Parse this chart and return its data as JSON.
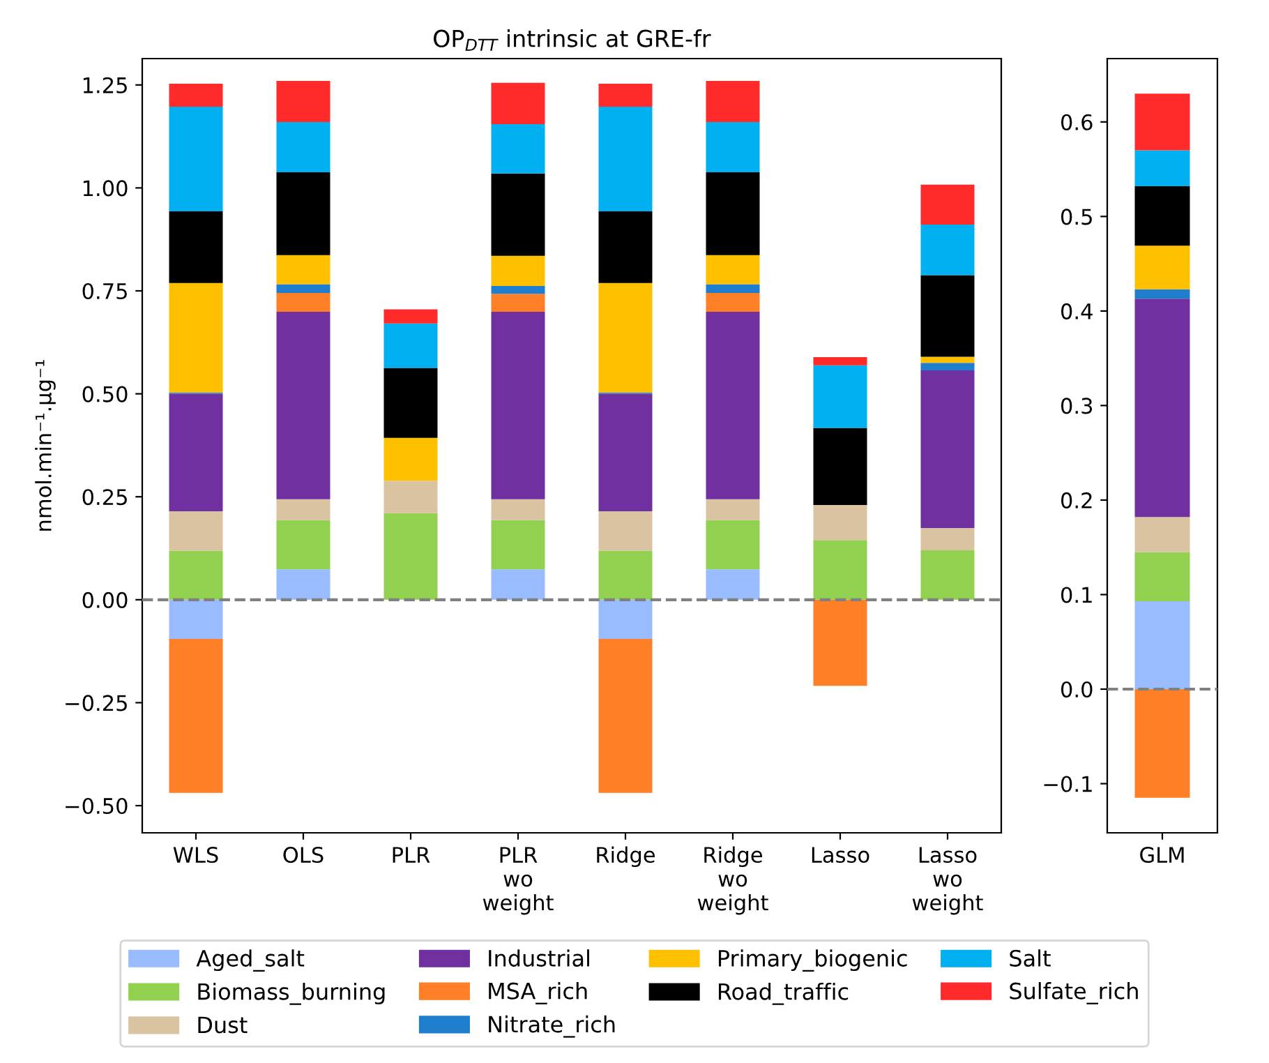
{
  "chart_data": [
    {
      "type": "bar",
      "stacked": true,
      "title": "OP$_{DTT}$ intrinsic at GRE-fr",
      "ylabel": "nmol.min⁻¹.µg⁻¹",
      "categories": [
        "WLS",
        "OLS",
        "PLR",
        "PLR\nwo\nweight",
        "Ridge",
        "Ridge\nwo\nweight",
        "Lasso",
        "Lasso\nwo\nweight"
      ],
      "ylim": [
        -0.566,
        1.314
      ],
      "yticks": [
        {
          "value": -0.5,
          "label": "−0.50"
        },
        {
          "value": -0.25,
          "label": "−0.25"
        },
        {
          "value": 0,
          "label": "0.00"
        },
        {
          "value": 0.25,
          "label": "0.25"
        },
        {
          "value": 0.5,
          "label": "0.50"
        },
        {
          "value": 0.75,
          "label": "0.75"
        },
        {
          "value": 1.0,
          "label": "1.00"
        },
        {
          "value": 1.25,
          "label": "1.25"
        }
      ],
      "legend": "bottom",
      "grid": false,
      "ref_lines": [
        {
          "axis": "y",
          "value": 0,
          "color": "#808080",
          "line_style": "dashed"
        }
      ],
      "series": [
        {
          "name": "Aged_salt",
          "color": "#99bbff",
          "values": [
            -0.095,
            0.074,
            0,
            0.074,
            -0.095,
            0.074,
            0,
            0
          ]
        },
        {
          "name": "Biomass_burning",
          "color": "#92d050",
          "values": [
            0.119,
            0.119,
            0.21,
            0.119,
            0.119,
            0.119,
            0.145,
            0.12
          ]
        },
        {
          "name": "Dust",
          "color": "#d9c3a0",
          "values": [
            0.096,
            0.051,
            0.079,
            0.051,
            0.096,
            0.051,
            0.085,
            0.054
          ]
        },
        {
          "name": "Industrial",
          "color": "#7030a0",
          "values": [
            0.285,
            0.455,
            0,
            0.455,
            0.285,
            0.455,
            0,
            0.383
          ]
        },
        {
          "name": "MSA_rich",
          "color": "#ff7f27",
          "values": [
            -0.374,
            0.046,
            0,
            0.044,
            -0.374,
            0.046,
            -0.209,
            0
          ]
        },
        {
          "name": "Nitrate_rich",
          "color": "#1f7ecd",
          "values": [
            0.003,
            0.021,
            0,
            0.019,
            0.003,
            0.021,
            0,
            0.018
          ]
        },
        {
          "name": "Primary_biogenic",
          "color": "#ffc000",
          "values": [
            0.266,
            0.071,
            0.104,
            0.073,
            0.266,
            0.071,
            0,
            0.015
          ]
        },
        {
          "name": "Road_traffic",
          "color": "#000000",
          "values": [
            0.174,
            0.201,
            0.17,
            0.2,
            0.174,
            0.201,
            0.187,
            0.198
          ]
        },
        {
          "name": "Salt",
          "color": "#00b0f0",
          "values": [
            0.254,
            0.122,
            0.108,
            0.12,
            0.254,
            0.122,
            0.152,
            0.123
          ]
        },
        {
          "name": "Sulfate_rich",
          "color": "#ff2b2b",
          "values": [
            0.056,
            0.1,
            0.034,
            0.1,
            0.056,
            0.1,
            0.02,
            0.097
          ]
        }
      ]
    },
    {
      "type": "bar",
      "stacked": true,
      "categories": [
        "GLM"
      ],
      "ylim": [
        -0.152,
        0.667
      ],
      "yticks": [
        {
          "value": -0.1,
          "label": "−0.1"
        },
        {
          "value": 0,
          "label": "0.0"
        },
        0.1,
        0.2,
        0.3,
        0.4,
        0.5,
        0.6
      ],
      "grid": false,
      "ref_lines": [
        {
          "axis": "y",
          "value": 0,
          "color": "#808080",
          "line_style": "dashed"
        }
      ],
      "series": [
        {
          "color": "#99bbff",
          "values": [
            0.093
          ]
        },
        {
          "color": "#92d050",
          "values": [
            0.052
          ]
        },
        {
          "color": "#d9c3a0",
          "values": [
            0.037
          ]
        },
        {
          "color": "#7030a0",
          "values": [
            0.231
          ]
        },
        {
          "color": "#ff7f27",
          "values": [
            -0.115
          ]
        },
        {
          "color": "#1f7ecd",
          "values": [
            0.01
          ]
        },
        {
          "color": "#ffc000",
          "values": [
            0.046
          ]
        },
        {
          "color": "#000000",
          "values": [
            0.063
          ]
        },
        {
          "color": "#00b0f0",
          "values": [
            0.038
          ]
        },
        {
          "color": "#ff2b2b",
          "values": [
            0.06
          ]
        }
      ]
    }
  ]
}
